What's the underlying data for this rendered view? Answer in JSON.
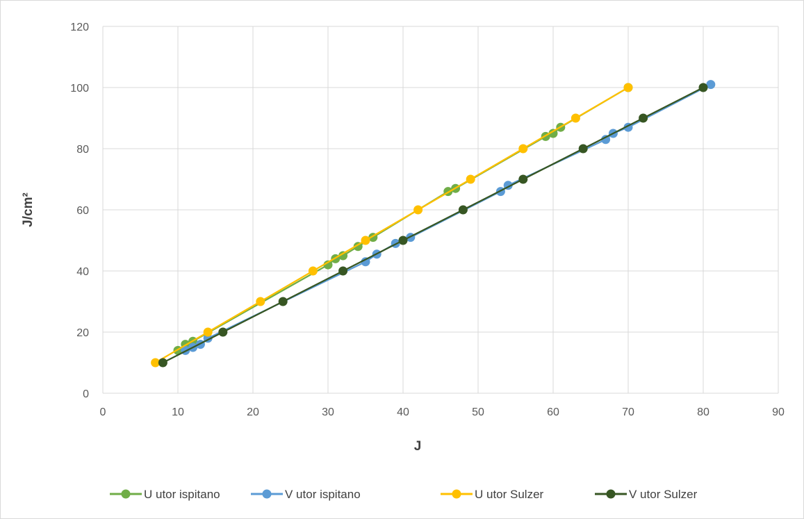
{
  "chart_data": {
    "type": "scatter",
    "xlabel": "J",
    "ylabel": "J/cm²",
    "xlim": [
      0,
      90
    ],
    "ylim": [
      0,
      120
    ],
    "xticks": [
      "0",
      "10",
      "20",
      "30",
      "40",
      "50",
      "60",
      "70",
      "80",
      "90"
    ],
    "yticks": [
      "0",
      "20",
      "40",
      "60",
      "80",
      "100",
      "120"
    ],
    "grid": true,
    "legend_position": "bottom",
    "series": [
      {
        "name": "U utor ispitano",
        "color": "#70ad47",
        "points": [
          [
            10,
            14
          ],
          [
            11,
            16
          ],
          [
            12,
            17
          ],
          [
            30,
            42
          ],
          [
            31,
            44
          ],
          [
            32,
            45
          ],
          [
            34,
            48
          ],
          [
            36,
            51
          ],
          [
            46,
            66
          ],
          [
            47,
            67
          ],
          [
            59,
            84
          ],
          [
            60,
            85
          ],
          [
            61,
            87
          ],
          [
            70,
            100
          ]
        ]
      },
      {
        "name": "V utor ispitano",
        "color": "#5b9bd5",
        "points": [
          [
            11,
            14
          ],
          [
            12,
            15
          ],
          [
            13,
            16
          ],
          [
            14,
            18
          ],
          [
            35,
            43
          ],
          [
            36.5,
            45.5
          ],
          [
            39,
            49
          ],
          [
            41,
            51
          ],
          [
            53,
            66
          ],
          [
            54,
            68
          ],
          [
            67,
            83
          ],
          [
            68,
            85
          ],
          [
            70,
            87
          ],
          [
            81,
            101
          ]
        ]
      },
      {
        "name": "U utor Sulzer",
        "color": "#ffc000",
        "points": [
          [
            7,
            10
          ],
          [
            14,
            20
          ],
          [
            21,
            30
          ],
          [
            28,
            40
          ],
          [
            35,
            50
          ],
          [
            42,
            60
          ],
          [
            49,
            70
          ],
          [
            56,
            80
          ],
          [
            63,
            90
          ],
          [
            70,
            100
          ]
        ]
      },
      {
        "name": "V utor Sulzer",
        "color": "#375623",
        "points": [
          [
            8,
            10
          ],
          [
            16,
            20
          ],
          [
            24,
            30
          ],
          [
            32,
            40
          ],
          [
            40,
            50
          ],
          [
            48,
            60
          ],
          [
            56,
            70
          ],
          [
            64,
            80
          ],
          [
            72,
            90
          ],
          [
            80,
            100
          ]
        ]
      }
    ]
  }
}
